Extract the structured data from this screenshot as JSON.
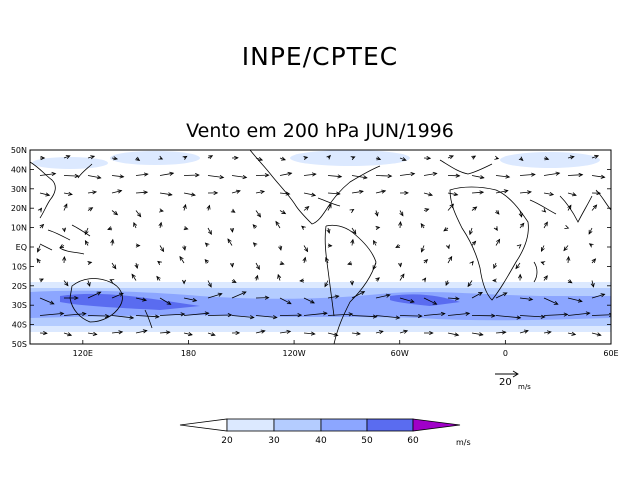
{
  "header": {
    "title": "INPE/CPTEC",
    "subtitle": "Vento em 200 hPa JUN/1996"
  },
  "map": {
    "lat_labels": [
      "50N",
      "40N",
      "30N",
      "20N",
      "10N",
      "EQ",
      "10S",
      "20S",
      "30S",
      "40S",
      "50S"
    ],
    "lon_labels": [
      "120E",
      "180",
      "120W",
      "60W",
      "0",
      "60E"
    ],
    "lat_range": [
      -50,
      50
    ],
    "lon_range_east": [
      90,
      420
    ],
    "projection": "cylindrical",
    "shading": "wind speed",
    "vector_field": "wind vectors"
  },
  "reference_vector": {
    "value": "20",
    "unit": "m/s"
  },
  "colorbar": {
    "levels": [
      "20",
      "30",
      "40",
      "50",
      "60"
    ],
    "unit": "m/s",
    "colors": [
      "#ffffff",
      "#dce9ff",
      "#b4ccff",
      "#8ca6ff",
      "#5a6cf0",
      "#a000c8"
    ]
  }
}
